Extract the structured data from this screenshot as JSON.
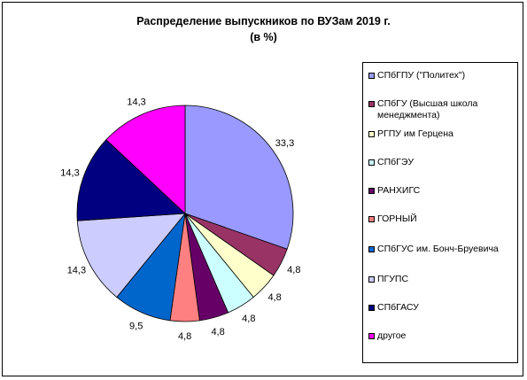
{
  "chart_data": {
    "type": "pie",
    "title": "Распределение выпускников по ВУЗам 2019 г.",
    "subtitle": "(в %)",
    "legend_position": "right",
    "slices": [
      {
        "label": "СПбГПУ (\"Политех\")",
        "value": 33.3,
        "display": "33,3",
        "color": "#9999FF"
      },
      {
        "label": "СПбГУ (Высшая школа менеджмента)",
        "value": 4.8,
        "display": "4,8",
        "color": "#993366"
      },
      {
        "label": "РГПУ им Герцена",
        "value": 4.8,
        "display": "4,8",
        "color": "#FFFFCC"
      },
      {
        "label": "СПбГЭУ",
        "value": 4.8,
        "display": "4,8",
        "color": "#CCFFFF"
      },
      {
        "label": "РАНХИГС",
        "value": 4.8,
        "display": "4,8",
        "color": "#660066"
      },
      {
        "label": "ГОРНЫЙ",
        "value": 4.8,
        "display": "4,8",
        "color": "#FF8080"
      },
      {
        "label": "СПбГУС им. Бонч-Бруевича",
        "value": 9.5,
        "display": "9,5",
        "color": "#0066CC"
      },
      {
        "label": "ПГУПС",
        "value": 14.3,
        "display": "14,3",
        "color": "#CCCCFF"
      },
      {
        "label": "СПбГАСУ",
        "value": 14.3,
        "display": "14,3",
        "color": "#000080"
      },
      {
        "label": "другое",
        "value": 14.3,
        "display": "14,3",
        "color": "#FF00FF"
      }
    ]
  }
}
